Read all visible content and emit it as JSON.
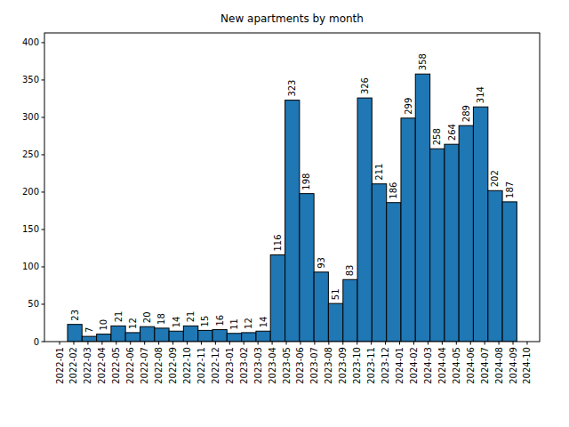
{
  "chart_data": {
    "type": "histogram",
    "title": "New apartments by month",
    "bins": [
      0.56,
      1.58,
      2.61,
      3.63,
      4.65,
      5.68,
      6.7,
      7.72,
      8.74,
      9.77,
      10.79,
      11.81,
      12.84,
      13.86,
      14.88,
      15.91,
      16.93,
      17.95,
      18.97,
      20.0,
      21.02,
      22.04,
      23.07,
      24.09,
      25.11,
      26.14,
      27.16,
      28.18,
      29.2,
      30.23,
      31.25,
      32.27
    ],
    "values": [
      23,
      7,
      10,
      21,
      12,
      20,
      18,
      14,
      21,
      15,
      16,
      11,
      12,
      14,
      116,
      323,
      198,
      93,
      51,
      83,
      326,
      211,
      186,
      299,
      358,
      258,
      264,
      289,
      314,
      202,
      187
    ],
    "color": "#1f77b4",
    "data_labels": true,
    "grid": false,
    "xlim": [
      -1.07,
      33.88
    ],
    "xticks": [
      {
        "value": 0,
        "label": "2022-01"
      },
      {
        "value": 1,
        "label": "2022-02"
      },
      {
        "value": 2,
        "label": "2022-03"
      },
      {
        "value": 3,
        "label": "2022-04"
      },
      {
        "value": 4,
        "label": "2022-05"
      },
      {
        "value": 5,
        "label": "2022-06"
      },
      {
        "value": 6,
        "label": "2022-07"
      },
      {
        "value": 7,
        "label": "2022-08"
      },
      {
        "value": 8,
        "label": "2022-09"
      },
      {
        "value": 9,
        "label": "2022-10"
      },
      {
        "value": 10,
        "label": "2022-11"
      },
      {
        "value": 11,
        "label": "2022-12"
      },
      {
        "value": 12,
        "label": "2023-01"
      },
      {
        "value": 13,
        "label": "2023-02"
      },
      {
        "value": 14,
        "label": "2023-03"
      },
      {
        "value": 15,
        "label": "2023-04"
      },
      {
        "value": 16,
        "label": "2023-05"
      },
      {
        "value": 17,
        "label": "2023-06"
      },
      {
        "value": 18,
        "label": "2023-07"
      },
      {
        "value": 19,
        "label": "2023-08"
      },
      {
        "value": 20,
        "label": "2023-09"
      },
      {
        "value": 21,
        "label": "2023-10"
      },
      {
        "value": 22,
        "label": "2023-11"
      },
      {
        "value": 23,
        "label": "2023-12"
      },
      {
        "value": 24,
        "label": "2024-01"
      },
      {
        "value": 25,
        "label": "2024-02"
      },
      {
        "value": 26,
        "label": "2024-03"
      },
      {
        "value": 27,
        "label": "2024-04"
      },
      {
        "value": 28,
        "label": "2024-05"
      },
      {
        "value": 29,
        "label": "2024-06"
      },
      {
        "value": 30,
        "label": "2024-07"
      },
      {
        "value": 31,
        "label": "2024-08"
      },
      {
        "value": 32,
        "label": "2024-09"
      },
      {
        "value": 33,
        "label": "2024-10"
      }
    ],
    "ylim": [
      0,
      413
    ],
    "yticks": [
      0,
      50,
      100,
      150,
      200,
      250,
      300,
      350,
      400
    ]
  }
}
